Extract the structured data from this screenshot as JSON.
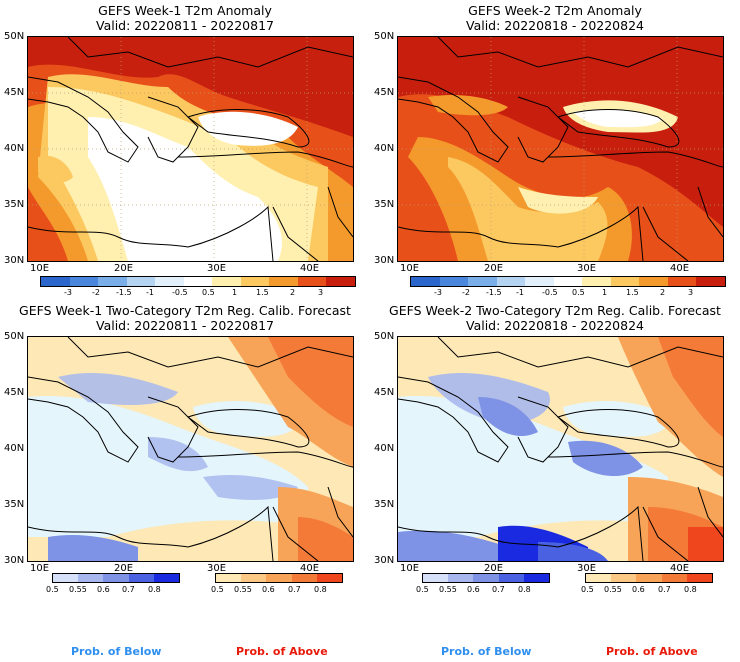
{
  "panels": [
    {
      "title": "GEFS Week-1 T2m Anomaly",
      "valid": "Valid: 20220811 - 20220817"
    },
    {
      "title": "GEFS Week-2 T2m Anomaly",
      "valid": "Valid: 20220818 - 20220824"
    },
    {
      "title": "GEFS Week-1 Two-Category T2m Reg. Calib. Forecast",
      "valid": "Valid: 20220811 - 20220817"
    },
    {
      "title": "GEFS Week-2 Two-Category T2m Reg. Calib. Forecast",
      "valid": "Valid: 20220818 - 20220824"
    }
  ],
  "lat_labels": [
    "50N",
    "45N",
    "40N",
    "35N",
    "30N"
  ],
  "lon_labels": [
    "10E",
    "20E",
    "30E",
    "40E"
  ],
  "anomaly_scale": {
    "labels": [
      "-3",
      "-2",
      "-1.5",
      "-1",
      "-0.5",
      "0.5",
      "1",
      "1.5",
      "2",
      "3"
    ],
    "colors": [
      "#2a66cc",
      "#4a86dc",
      "#7aaee8",
      "#b4d4f2",
      "#e2f0fb",
      "#ffffff",
      "#fff0b0",
      "#fcc860",
      "#f49a2c",
      "#e8501a",
      "#c81e0e"
    ]
  },
  "below_scale": {
    "labels": [
      "0.5",
      "0.55",
      "0.6",
      "0.7",
      "0.8"
    ],
    "colors": [
      "#d6e0f8",
      "#a8b8ee",
      "#7e92e6",
      "#4a62e2",
      "#1a2ae0"
    ]
  },
  "above_scale": {
    "labels": [
      "0.5",
      "0.55",
      "0.6",
      "0.7",
      "0.8"
    ],
    "colors": [
      "#fde8b6",
      "#fcc886",
      "#f8a458",
      "#f47a38",
      "#f0461e"
    ]
  },
  "prob_below": "Prob. of Below",
  "prob_above": "Prob. of Above",
  "colors": {
    "below_text": "#2f8fef",
    "above_text": "#e81a0a"
  }
}
